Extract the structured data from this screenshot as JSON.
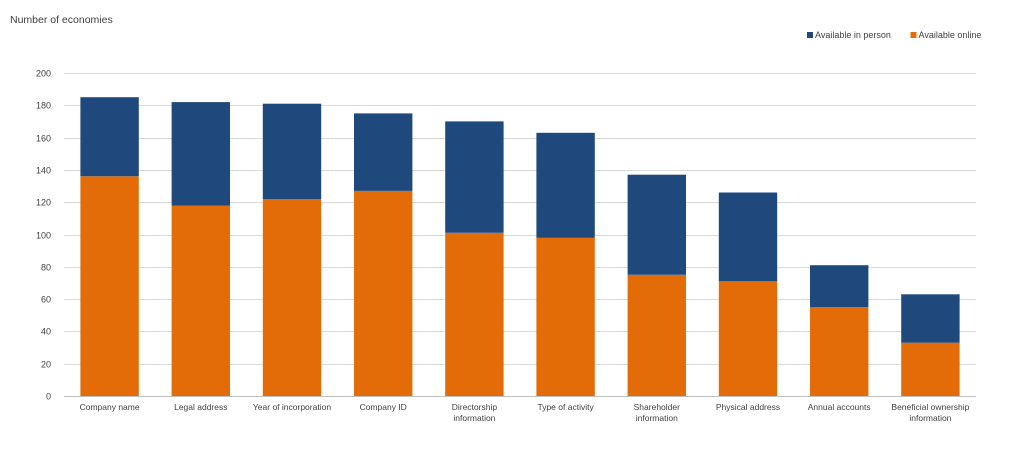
{
  "chart_data": {
    "type": "bar",
    "stacked": true,
    "title": "",
    "ylabel": "Number  of economies",
    "xlabel": "",
    "ylim": [
      0,
      200
    ],
    "yticks": [
      0,
      20,
      40,
      60,
      80,
      100,
      120,
      140,
      160,
      180,
      200
    ],
    "grid": true,
    "legend_position": "top-right",
    "categories": [
      [
        "Company name"
      ],
      [
        "Legal address"
      ],
      [
        "Year of incorporation"
      ],
      [
        "Company ID"
      ],
      [
        "Directorship",
        "information"
      ],
      [
        "Type of activity"
      ],
      [
        "Shareholder",
        "information"
      ],
      [
        "Physical address"
      ],
      [
        "Annual accounts"
      ],
      [
        "Beneficial ownership",
        "information"
      ]
    ],
    "series": [
      {
        "name": "Available online",
        "color": "#E36C09",
        "values": [
          136,
          118,
          122,
          127,
          101,
          98,
          75,
          71,
          55,
          33
        ]
      },
      {
        "name": "Available in person",
        "color": "#1F497D",
        "values": [
          49,
          64,
          59,
          48,
          69,
          65,
          62,
          55,
          26,
          30
        ]
      }
    ],
    "legend_order": [
      "Available in person",
      "Available online"
    ]
  }
}
